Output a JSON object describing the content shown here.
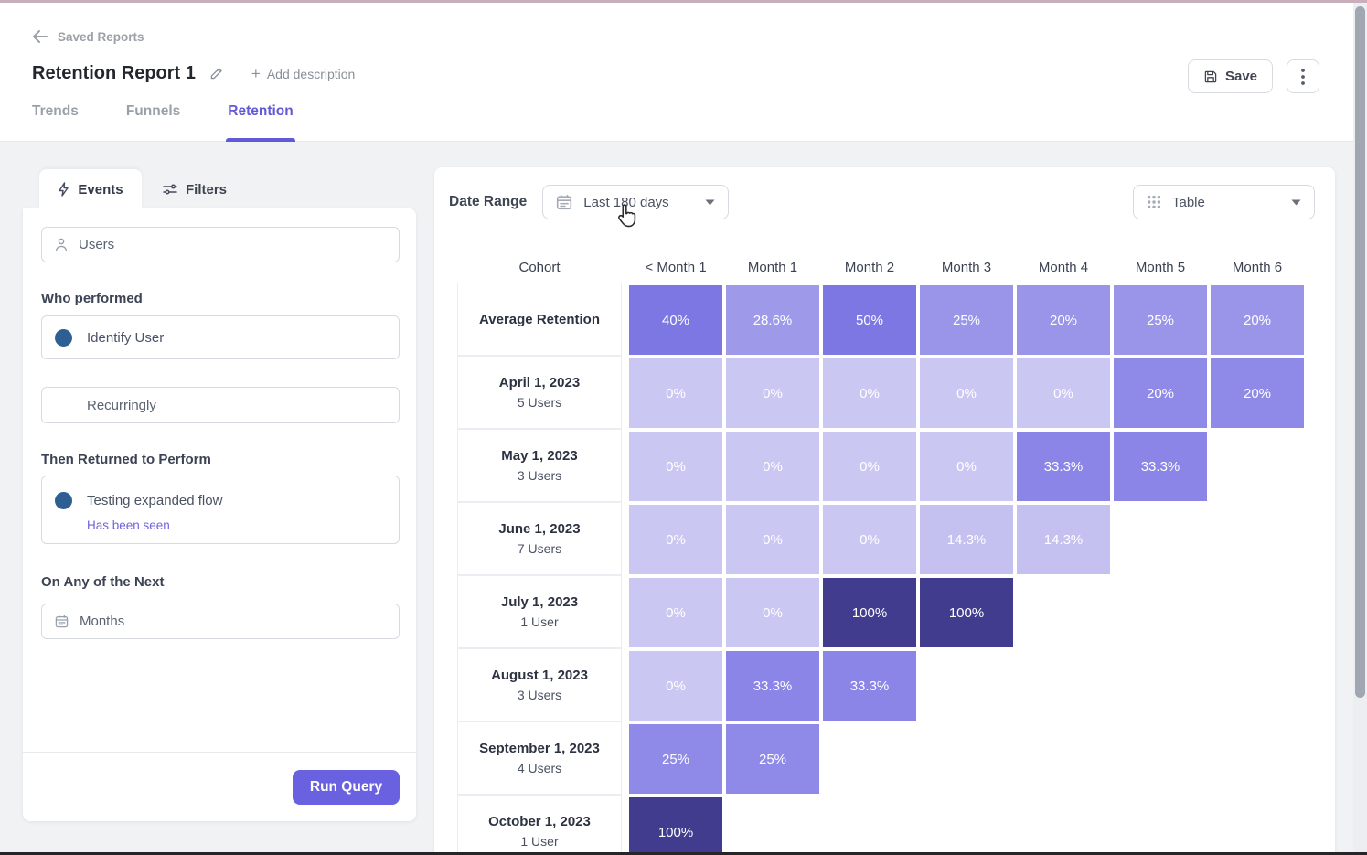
{
  "header": {
    "back": "Saved Reports",
    "title": "Retention Report 1",
    "add_description": "Add description",
    "save": "Save",
    "tabs": {
      "trends": "Trends",
      "funnels": "Funnels",
      "retention": "Retention"
    }
  },
  "panel": {
    "events_tab": "Events",
    "filters_tab": "Filters",
    "users_field": "Users",
    "who_performed": "Who performed",
    "event": "Identify User",
    "recurringly": "Recurringly",
    "then_returned": "Then Returned to Perform",
    "return_event": "Testing expanded flow",
    "seen_filter": "Has been seen",
    "on_any": "On Any of the Next",
    "months_field": "Months",
    "run_query": "Run Query"
  },
  "toolbar": {
    "date_range_label": "Date Range",
    "date_range_value": "Last 180 days",
    "view_value": "Table"
  },
  "colors": {
    "accent": "#6159d6",
    "run_button": "#6a61e0",
    "event_dot": "#2d5f92",
    "link": "#6e63d9",
    "heat_low": "#cac8f2",
    "heat_high": "#413c8e"
  },
  "chart_data": {
    "type": "heatmap",
    "columns": [
      "Cohort",
      "< Month 1",
      "Month 1",
      "Month 2",
      "Month 3",
      "Month 4",
      "Month 5",
      "Month 6"
    ],
    "rows": [
      {
        "cohort": "Average Retention",
        "subtitle": "",
        "values_pct": [
          40,
          28.6,
          50,
          25,
          20,
          25,
          20
        ],
        "labels": [
          "40%",
          "28.6%",
          "50%",
          "25%",
          "20%",
          "25%",
          "20%"
        ],
        "colors": [
          "#7c77e3",
          "#9e9ae9",
          "#7c77e3",
          "#9a95e8",
          "#9a95e8",
          "#9a95e8",
          "#9a95e8"
        ]
      },
      {
        "cohort": "April 1, 2023",
        "subtitle": "5 Users",
        "values_pct": [
          0,
          0,
          0,
          0,
          0,
          20,
          20
        ],
        "labels": [
          "0%",
          "0%",
          "0%",
          "0%",
          "0%",
          "20%",
          "20%"
        ],
        "colors": [
          "#cac8f2",
          "#cac8f2",
          "#cac8f2",
          "#cac8f2",
          "#cac8f2",
          "#8f8ae7",
          "#8f8ae7"
        ]
      },
      {
        "cohort": "May 1, 2023",
        "subtitle": "3 Users",
        "values_pct": [
          0,
          0,
          0,
          0,
          33.3,
          33.3
        ],
        "labels": [
          "0%",
          "0%",
          "0%",
          "0%",
          "33.3%",
          "33.3%"
        ],
        "colors": [
          "#cac8f2",
          "#cac8f2",
          "#cac8f2",
          "#cac8f2",
          "#8a85e6",
          "#8a85e6"
        ]
      },
      {
        "cohort": "June 1, 2023",
        "subtitle": "7 Users",
        "values_pct": [
          0,
          0,
          0,
          14.3,
          14.3
        ],
        "labels": [
          "0%",
          "0%",
          "0%",
          "14.3%",
          "14.3%"
        ],
        "colors": [
          "#cac8f2",
          "#cac8f2",
          "#cac8f2",
          "#c4c1f0",
          "#c4c1f0"
        ]
      },
      {
        "cohort": "July 1, 2023",
        "subtitle": "1 User",
        "values_pct": [
          0,
          0,
          100,
          100
        ],
        "labels": [
          "0%",
          "0%",
          "100%",
          "100%"
        ],
        "colors": [
          "#cac8f2",
          "#cac8f2",
          "#413c8e",
          "#413c8e"
        ]
      },
      {
        "cohort": "August 1, 2023",
        "subtitle": "3 Users",
        "values_pct": [
          0,
          33.3,
          33.3
        ],
        "labels": [
          "0%",
          "33.3%",
          "33.3%"
        ],
        "colors": [
          "#cac8f2",
          "#8a85e6",
          "#8a85e6"
        ]
      },
      {
        "cohort": "September 1, 2023",
        "subtitle": "4 Users",
        "values_pct": [
          25,
          25
        ],
        "labels": [
          "25%",
          "25%"
        ],
        "colors": [
          "#8f8ae7",
          "#8f8ae7"
        ]
      },
      {
        "cohort": "October 1, 2023",
        "subtitle": "1 User",
        "values_pct": [
          100
        ],
        "labels": [
          "100%"
        ],
        "colors": [
          "#413c8e"
        ]
      }
    ]
  }
}
